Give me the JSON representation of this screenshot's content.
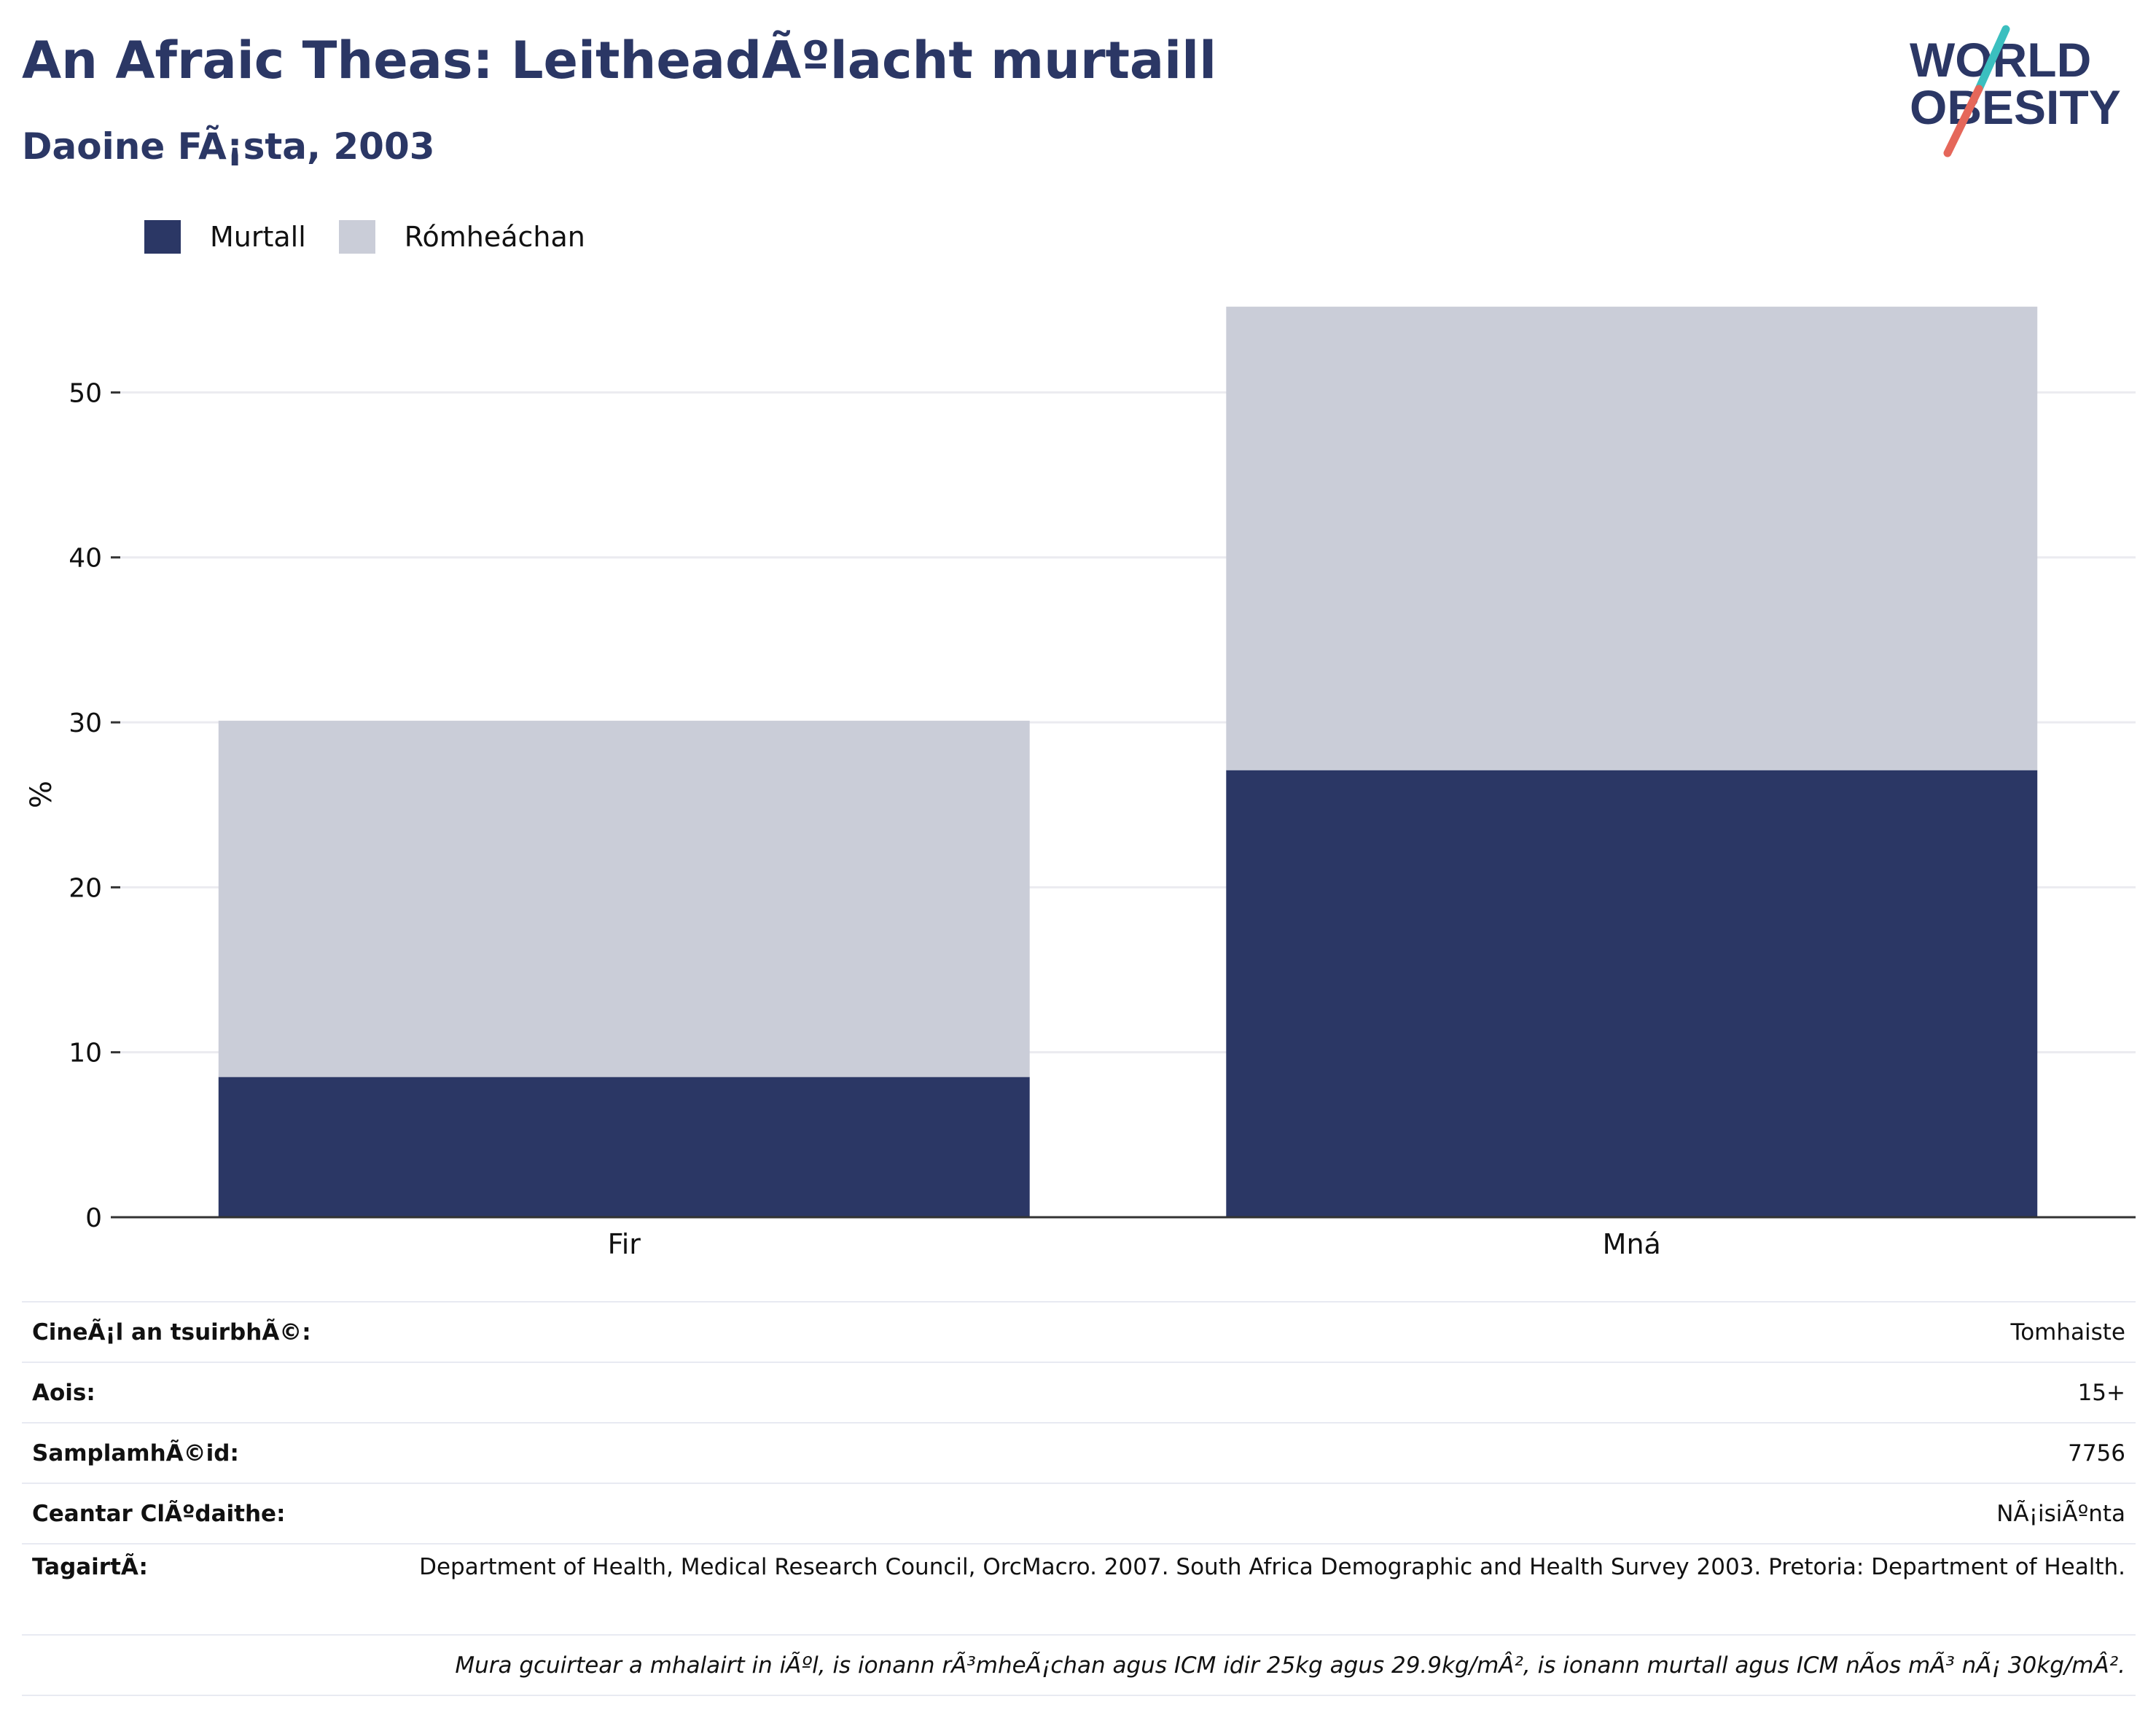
{
  "title": "An Afraic Theas: LeitheadÃºlacht murtaill",
  "subtitle": "Daoine FÃ¡sta, 2003",
  "logo": {
    "line1": "WORLD",
    "line2": "OBESITY"
  },
  "colors": {
    "obese": "#2b3765",
    "overweight": "#cacdd8",
    "title": "#2b3765",
    "accent_teal": "#3bbfbf",
    "accent_red": "#e5675a"
  },
  "legend": [
    {
      "label": "Murtall",
      "color": "#2b3765"
    },
    {
      "label": "Rómheáchan",
      "color": "#cacdd8"
    }
  ],
  "chart_data": {
    "type": "bar",
    "stacked": true,
    "categories": [
      "Fir",
      "Mná"
    ],
    "series": [
      {
        "name": "Murtall",
        "values": [
          8.5,
          27.1
        ]
      },
      {
        "name": "Rómheáchan",
        "values": [
          21.6,
          28.1
        ]
      }
    ],
    "ylabel": "%",
    "ylim": [
      0,
      57
    ],
    "yticks": [
      0,
      10,
      20,
      30,
      40,
      50
    ],
    "grid": true
  },
  "info": [
    {
      "key": "CineÃ¡l an tsuirbhÃ©:",
      "value": "Tomhaiste"
    },
    {
      "key": "Aois:",
      "value": "15+"
    },
    {
      "key": "SamplamhÃ©id:",
      "value": "7756"
    },
    {
      "key": "Ceantar ClÃºdaithe:",
      "value": "NÃ¡isiÃºnta"
    },
    {
      "key": "TagairtÃ:",
      "value": "Department of Health, Medical Research Council, OrcMacro. 2007. South Africa Demographic and Health Survey 2003. Pretoria: Department of Health."
    }
  ],
  "note": "Mura gcuirtear a mhalairt in iÃºl, is ionann rÃ³mheÃ¡chan agus ICM idir 25kg agus 29.9kg/mÂ², is ionann murtall agus ICM nÃos mÃ³ nÃ¡ 30kg/mÂ²."
}
